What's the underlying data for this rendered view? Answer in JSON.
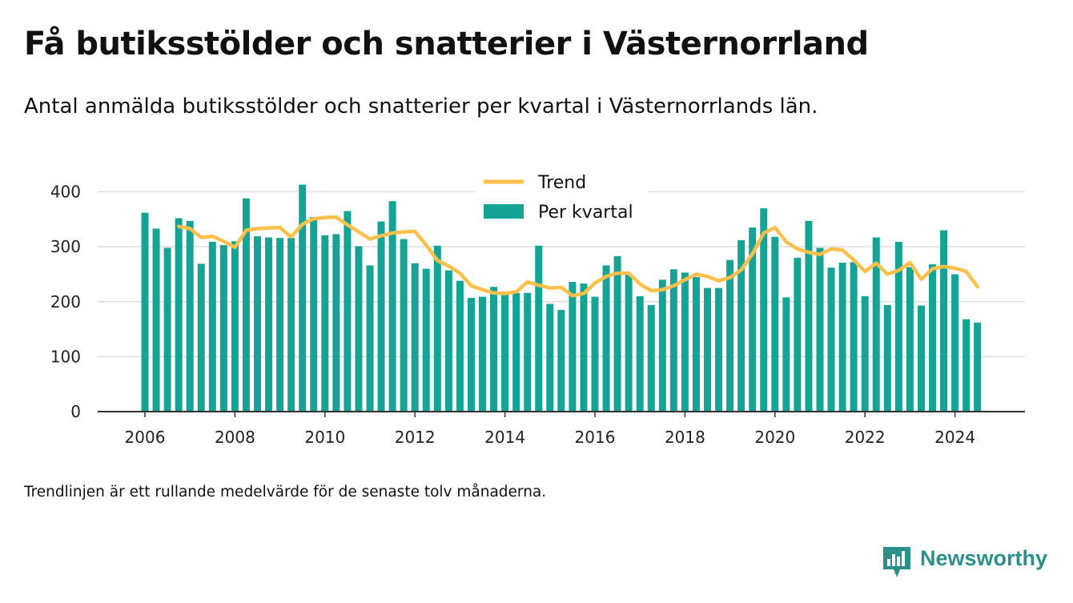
{
  "title": "Få butiksstölder och snatterier i Västernorrland",
  "subtitle": "Antal anmälda butiksstölder och snatterier per kvartal i Västernorrlands län.",
  "footnote": "Trendlinjen är ett rullande medelvärde för de senaste tolv månaderna.",
  "brand": {
    "name": "Newsworthy",
    "color": "#2d8f8a"
  },
  "colors": {
    "bar": "#14a394",
    "trend": "#fdc04a",
    "grid": "#dddddd",
    "axis": "#333333"
  },
  "chart_data": {
    "type": "bar",
    "x_start": "2006-Q1",
    "x_ticks": [
      "2006",
      "2008",
      "2010",
      "2012",
      "2014",
      "2016",
      "2018",
      "2020",
      "2022",
      "2024"
    ],
    "y_ticks": [
      "0",
      "100",
      "200",
      "300",
      "400"
    ],
    "ylim": [
      0,
      430
    ],
    "grid": true,
    "legend_position": "top-center",
    "series": [
      {
        "name": "Per kvartal",
        "type": "bar",
        "values": [
          362,
          333,
          298,
          352,
          347,
          269,
          309,
          303,
          310,
          388,
          319,
          317,
          316,
          316,
          413,
          354,
          321,
          323,
          365,
          301,
          266,
          346,
          383,
          314,
          270,
          260,
          302,
          257,
          238,
          207,
          209,
          227,
          214,
          216,
          216,
          302,
          196,
          185,
          236,
          233,
          209,
          266,
          283,
          250,
          210,
          194,
          240,
          259,
          253,
          245,
          225,
          225,
          276,
          312,
          335,
          370,
          318,
          208,
          280,
          347,
          298,
          262,
          271,
          272,
          210,
          317,
          194,
          309,
          263,
          193,
          268,
          330,
          250,
          168,
          162
        ]
      },
      {
        "name": "Trend",
        "type": "line",
        "values": [
          null,
          null,
          null,
          337,
          333,
          317,
          319,
          310,
          299,
          330,
          333,
          334,
          335,
          318,
          341,
          351,
          353,
          354,
          340,
          327,
          314,
          320,
          325,
          327,
          328,
          303,
          275,
          265,
          252,
          229,
          222,
          216,
          215,
          218,
          236,
          230,
          225,
          226,
          211,
          215,
          234,
          246,
          252,
          252,
          232,
          220,
          222,
          229,
          240,
          250,
          246,
          238,
          244,
          258,
          287,
          325,
          335,
          309,
          296,
          290,
          286,
          296,
          294,
          276,
          255,
          270,
          250,
          257,
          271,
          241,
          260,
          264,
          261,
          255,
          227
        ]
      }
    ]
  }
}
